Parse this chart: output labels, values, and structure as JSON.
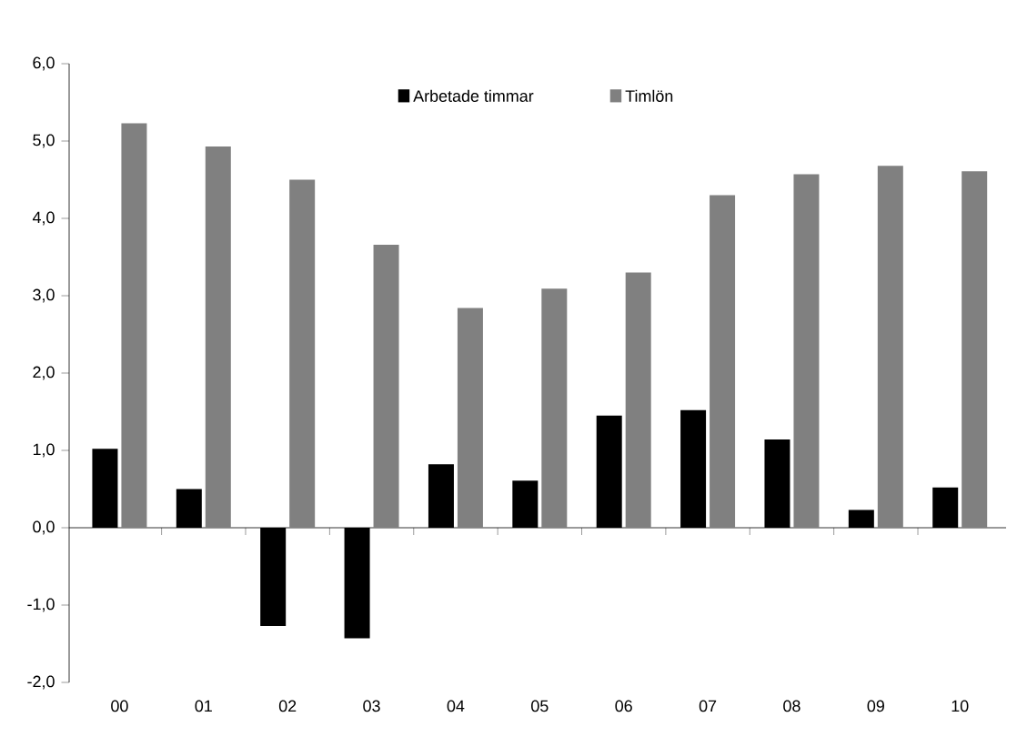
{
  "chart_data": {
    "type": "bar",
    "categories": [
      "00",
      "01",
      "02",
      "03",
      "04",
      "05",
      "06",
      "07",
      "08",
      "09",
      "10"
    ],
    "series": [
      {
        "name": "Arbetade timmar",
        "color": "#000000",
        "values": [
          1.02,
          0.5,
          -1.27,
          -1.43,
          0.82,
          0.61,
          1.45,
          1.52,
          1.14,
          0.23,
          0.52
        ]
      },
      {
        "name": "Timlön",
        "color": "#808080",
        "values": [
          5.23,
          4.93,
          4.5,
          3.66,
          2.84,
          3.09,
          3.3,
          4.3,
          4.57,
          4.68,
          4.61
        ]
      }
    ],
    "ylim": [
      -2,
      6
    ],
    "yticks": [
      {
        "value": -2,
        "label": "-2,0"
      },
      {
        "value": -1,
        "label": "-1,0"
      },
      {
        "value": 0,
        "label": "0,0"
      },
      {
        "value": 1,
        "label": "1,0"
      },
      {
        "value": 2,
        "label": "2,0"
      },
      {
        "value": 3,
        "label": "3,0"
      },
      {
        "value": 4,
        "label": "4,0"
      },
      {
        "value": 5,
        "label": "5,0"
      },
      {
        "value": 6,
        "label": "6,0"
      }
    ],
    "legend": "top"
  }
}
